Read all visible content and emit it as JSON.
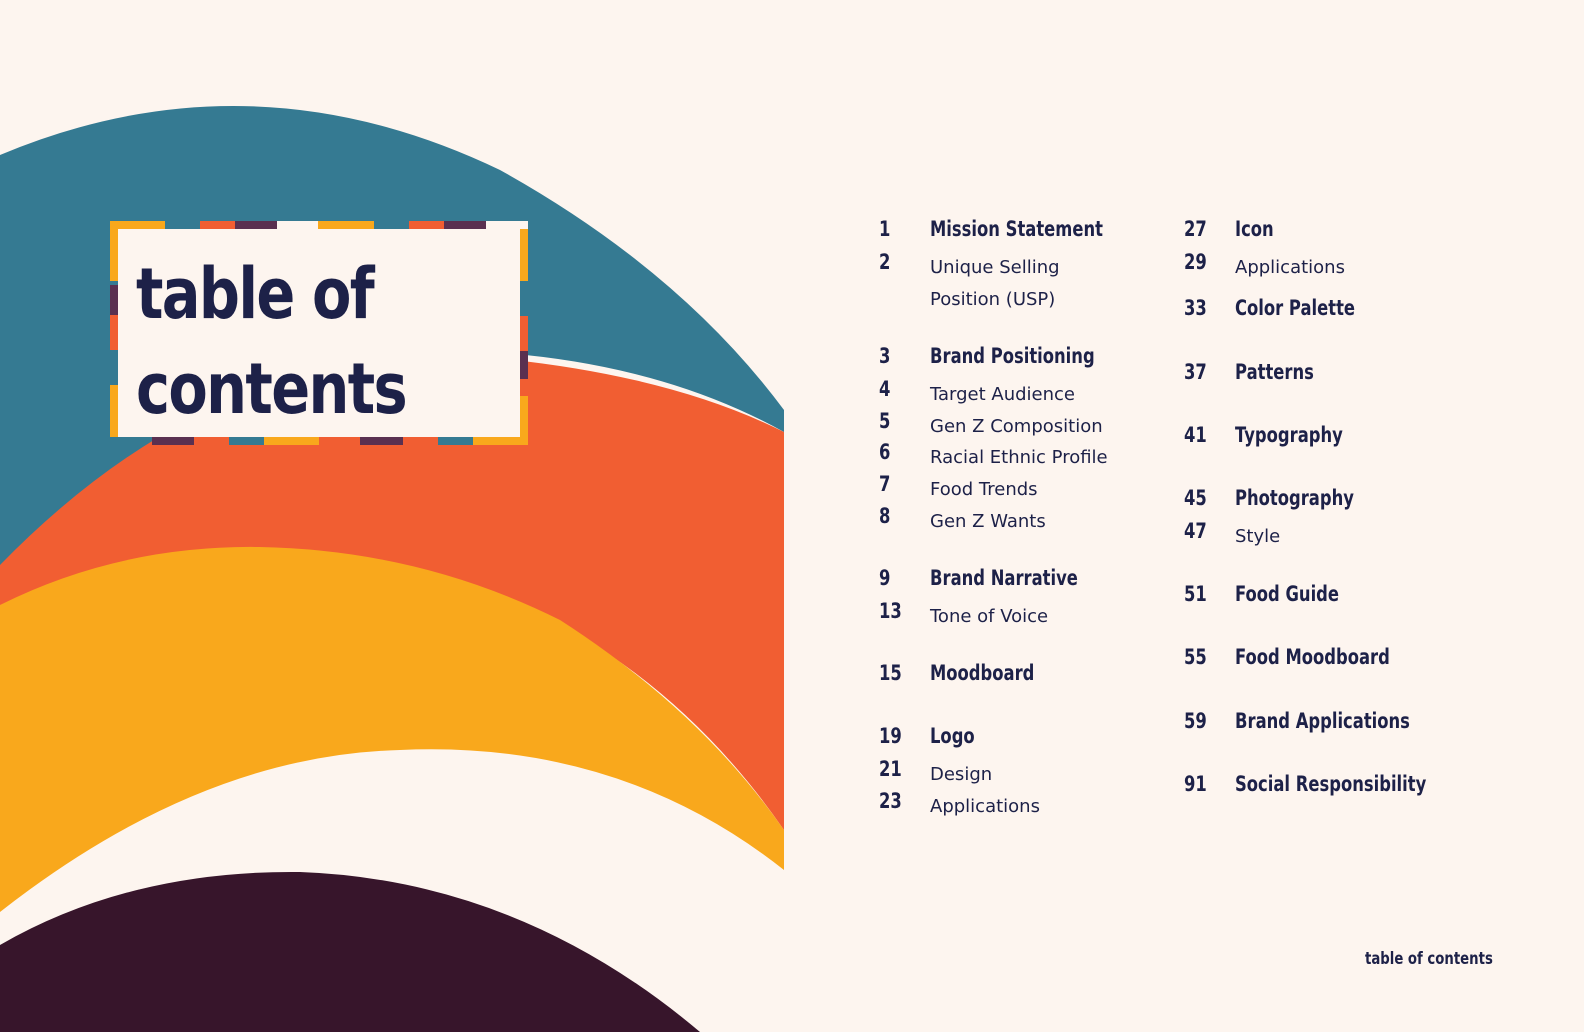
{
  "page_title_line1": "table of",
  "page_title_line2": "contents",
  "colors": {
    "background": "#FDF5EF",
    "teal": "#357A92",
    "orange": "#F15E32",
    "yellow": "#F9A81C",
    "plum": "#37152B",
    "navy": "#1D2148"
  },
  "toc_left": [
    {
      "num": "1",
      "label": "Mission Statement",
      "level": "main"
    },
    {
      "num": "2",
      "label": "Unique Selling Position (USP)",
      "level": "sub"
    },
    {
      "num": "3",
      "label": "Brand Positioning",
      "level": "main"
    },
    {
      "num": "4",
      "label": "Target Audience",
      "level": "sub"
    },
    {
      "num": "5",
      "label": "Gen Z Composition",
      "level": "sub"
    },
    {
      "num": "6",
      "label": "Racial Ethnic Profile",
      "level": "sub"
    },
    {
      "num": "7",
      "label": "Food Trends",
      "level": "sub"
    },
    {
      "num": "8",
      "label": "Gen Z Wants",
      "level": "sub"
    },
    {
      "num": "9",
      "label": "Brand Narrative",
      "level": "main"
    },
    {
      "num": "13",
      "label": "Tone of Voice",
      "level": "sub"
    },
    {
      "num": "15",
      "label": "Moodboard",
      "level": "main"
    },
    {
      "num": "19",
      "label": "Logo",
      "level": "main"
    },
    {
      "num": "21",
      "label": "Design",
      "level": "sub"
    },
    {
      "num": "23",
      "label": "Applications",
      "level": "sub"
    }
  ],
  "toc_right": [
    {
      "num": "27",
      "label": "Icon",
      "level": "main"
    },
    {
      "num": "29",
      "label": "Applications",
      "level": "sub"
    },
    {
      "num": "33",
      "label": "Color Palette",
      "level": "main"
    },
    {
      "num": "37",
      "label": "Patterns",
      "level": "main"
    },
    {
      "num": "41",
      "label": "Typography",
      "level": "main"
    },
    {
      "num": "45",
      "label": "Photography",
      "level": "main"
    },
    {
      "num": "47",
      "label": "Style",
      "level": "sub"
    },
    {
      "num": "51",
      "label": "Food Guide",
      "level": "main"
    },
    {
      "num": "55",
      "label": "Food Moodboard",
      "level": "main"
    },
    {
      "num": "59",
      "label": "Brand Applications",
      "level": "main"
    },
    {
      "num": "91",
      "label": "Social Responsibility",
      "level": "main"
    }
  ],
  "footer_label": "table of contents"
}
